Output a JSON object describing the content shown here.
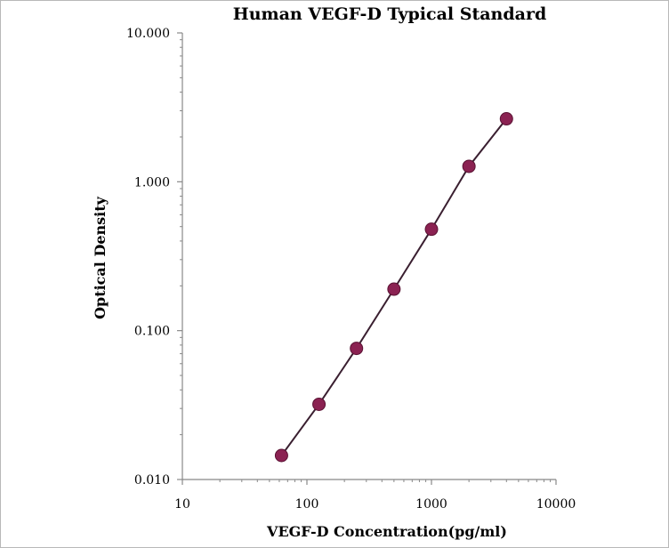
{
  "chart_data": {
    "type": "line",
    "title": "Human VEGF-D Typical Standard",
    "xlabel": "VEGF-D  Concentration(pg/ml)",
    "ylabel": "Optical Density",
    "x_scale": "log",
    "y_scale": "log",
    "xlim": [
      10,
      10000
    ],
    "ylim": [
      0.01,
      10
    ],
    "x_ticks": [
      "10",
      "100",
      "1000",
      "10000"
    ],
    "y_ticks": [
      "0.010",
      "0.100",
      "1.000",
      "10.000"
    ],
    "grid": false,
    "legend": "none",
    "series": [
      {
        "color": "#8b2252",
        "x": [
          62.5,
          125,
          250,
          500,
          1000,
          2000,
          4000
        ],
        "y": [
          0.0145,
          0.032,
          0.076,
          0.19,
          0.48,
          1.27,
          2.65
        ]
      }
    ]
  }
}
